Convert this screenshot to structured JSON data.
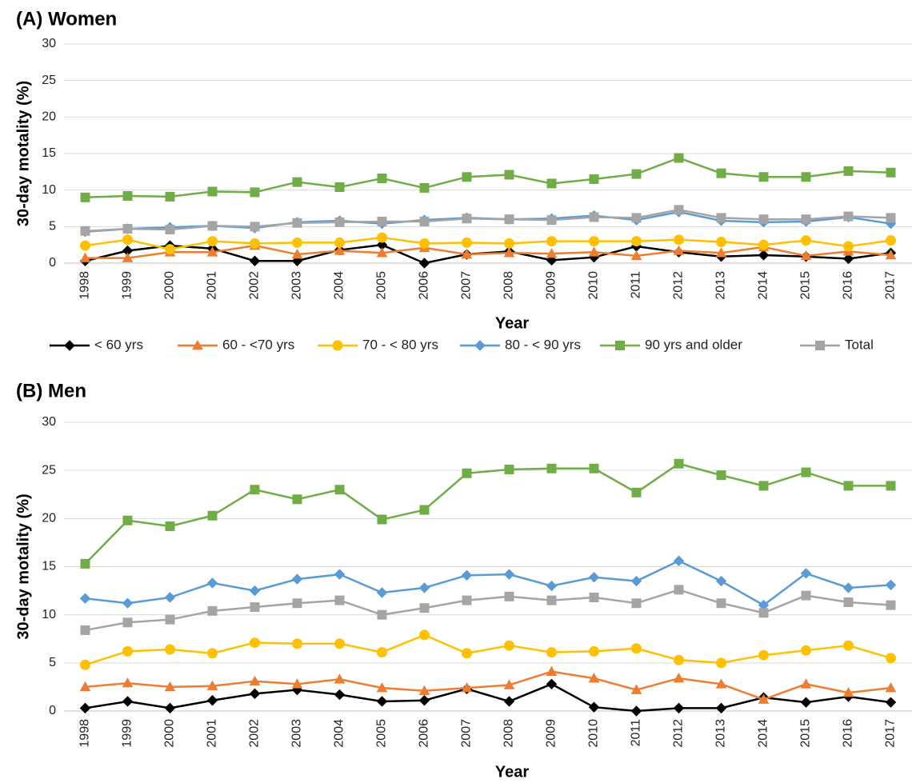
{
  "chart_data": [
    {
      "type": "line",
      "title": "(A) Women",
      "xlabel": "Year",
      "ylabel": "30-day motality (%)",
      "categories": [
        "1998",
        "1999",
        "2000",
        "2001",
        "2002",
        "2003",
        "2004",
        "2005",
        "2006",
        "2007",
        "2008",
        "2009",
        "2010",
        "2011",
        "2012",
        "2013",
        "2014",
        "2015",
        "2016",
        "2017"
      ],
      "ylim": [
        0,
        30
      ],
      "yticks": [
        0,
        5,
        10,
        15,
        20,
        25,
        30
      ],
      "grid": true,
      "series": [
        {
          "name": "< 60 yrs",
          "color": "#000000",
          "marker": "diamond",
          "values": [
            0.3,
            1.7,
            2.4,
            2.0,
            0.3,
            0.3,
            1.8,
            2.5,
            0,
            1.2,
            1.6,
            0.4,
            0.8,
            2.3,
            1.5,
            0.9,
            1.1,
            0.9,
            0.6,
            1.4
          ]
        },
        {
          "name": "60 - <70 yrs",
          "color": "#ed7d31",
          "marker": "triangle",
          "values": [
            0.7,
            0.7,
            1.5,
            1.5,
            2.4,
            1.2,
            1.7,
            1.4,
            2.1,
            1.2,
            1.4,
            1.3,
            1.5,
            1.0,
            1.7,
            1.4,
            2.2,
            1.0,
            1.6,
            1.1
          ]
        },
        {
          "name": "70 - < 80 yrs",
          "color": "#ffc000",
          "marker": "circle",
          "values": [
            2.4,
            3.2,
            1.9,
            3.0,
            2.7,
            2.8,
            2.8,
            3.5,
            2.7,
            2.8,
            2.7,
            3.0,
            3.0,
            3.0,
            3.2,
            2.9,
            2.5,
            3.1,
            2.3,
            3.1
          ]
        },
        {
          "name": "80 - < 90 yrs",
          "color": "#5b9bd5",
          "marker": "diamond",
          "values": [
            4.3,
            4.7,
            4.9,
            5.1,
            4.8,
            5.6,
            5.8,
            5.4,
            5.9,
            6.2,
            6.0,
            6.1,
            6.5,
            5.9,
            7.0,
            5.8,
            5.6,
            5.7,
            6.3,
            5.4
          ]
        },
        {
          "name": "90 yrs and older",
          "color": "#70ad47",
          "marker": "square",
          "values": [
            9.0,
            9.2,
            9.1,
            9.8,
            9.7,
            11.1,
            10.4,
            11.6,
            10.3,
            11.8,
            12.1,
            10.9,
            11.5,
            12.2,
            14.4,
            12.3,
            11.8,
            11.8,
            12.6,
            12.4
          ]
        },
        {
          "name": "Total",
          "color": "#a5a5a5",
          "marker": "square",
          "values": [
            4.4,
            4.7,
            4.6,
            5.1,
            5.0,
            5.5,
            5.6,
            5.7,
            5.7,
            6.1,
            6.0,
            5.9,
            6.3,
            6.2,
            7.3,
            6.2,
            6.0,
            6.0,
            6.4,
            6.2
          ]
        }
      ]
    },
    {
      "type": "line",
      "title": "(B) Men",
      "xlabel": "Year",
      "ylabel": "30-day motality (%)",
      "categories": [
        "1998",
        "1999",
        "2000",
        "2001",
        "2002",
        "2003",
        "2004",
        "2005",
        "2006",
        "2007",
        "2008",
        "2009",
        "2010",
        "2011",
        "2012",
        "2013",
        "2014",
        "2015",
        "2016",
        "2017"
      ],
      "ylim": [
        0,
        30
      ],
      "yticks": [
        0,
        5,
        10,
        15,
        20,
        25,
        30
      ],
      "grid": true,
      "series": [
        {
          "color": "#000000",
          "marker": "diamond",
          "values": [
            0.3,
            1.0,
            0.3,
            1.1,
            1.8,
            2.2,
            1.7,
            1.0,
            1.1,
            2.3,
            1.0,
            2.8,
            0.4,
            0,
            0.3,
            0.3,
            1.4,
            0.9,
            1.5,
            0.9
          ]
        },
        {
          "color": "#ed7d31",
          "marker": "triangle",
          "values": [
            2.5,
            2.9,
            2.5,
            2.6,
            3.1,
            2.8,
            3.3,
            2.4,
            2.1,
            2.4,
            2.7,
            4.1,
            3.4,
            2.2,
            3.4,
            2.8,
            1.2,
            2.8,
            1.9,
            2.4
          ]
        },
        {
          "color": "#ffc000",
          "marker": "circle",
          "values": [
            4.8,
            6.2,
            6.4,
            6.0,
            7.1,
            7.0,
            7.0,
            6.1,
            7.9,
            6.0,
            6.8,
            6.1,
            6.2,
            6.5,
            5.3,
            5.0,
            5.8,
            6.3,
            6.8,
            5.5
          ]
        },
        {
          "color": "#5b9bd5",
          "marker": "diamond",
          "values": [
            11.7,
            11.2,
            11.8,
            13.3,
            12.5,
            13.7,
            14.2,
            12.3,
            12.8,
            14.1,
            14.2,
            13.0,
            13.9,
            13.5,
            15.6,
            13.5,
            11.0,
            14.3,
            12.8,
            13.1
          ]
        },
        {
          "color": "#70ad47",
          "marker": "square",
          "values": [
            15.3,
            19.8,
            19.2,
            20.3,
            23.0,
            22.0,
            23.0,
            19.9,
            20.9,
            24.7,
            25.1,
            25.2,
            25.2,
            22.7,
            25.7,
            24.5,
            23.4,
            24.8,
            23.4,
            23.4
          ]
        },
        {
          "color": "#a5a5a5",
          "marker": "square",
          "values": [
            8.4,
            9.2,
            9.5,
            10.4,
            10.8,
            11.2,
            11.5,
            10.0,
            10.7,
            11.5,
            11.9,
            11.5,
            11.8,
            11.2,
            12.6,
            11.2,
            10.2,
            12.0,
            11.3,
            11.0
          ]
        }
      ]
    }
  ]
}
